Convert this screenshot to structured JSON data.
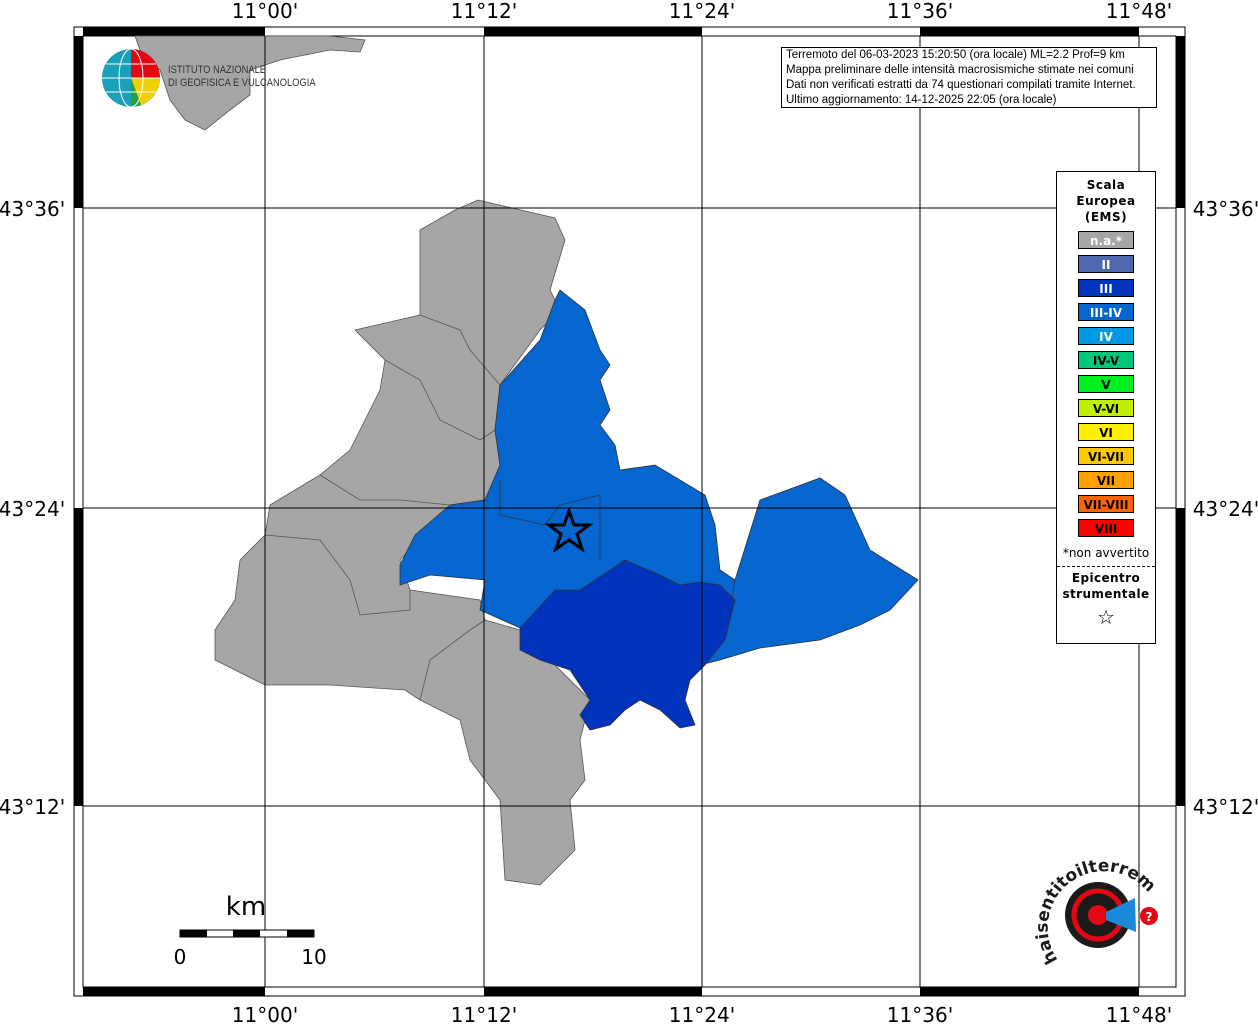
{
  "map": {
    "lon_labels": [
      "11°00'",
      "11°12'",
      "11°24'",
      "11°36'",
      "11°48'"
    ],
    "lat_labels": [
      "43°36'",
      "43°24'",
      "43°12'"
    ],
    "scale": {
      "unit": "km",
      "start": "0",
      "end": "10"
    }
  },
  "info": {
    "line1": "Terremoto del 06-03-2023 15:20:50 (ora locale) ML=2.2 Prof=9 km",
    "line2": "Mappa preliminare delle intensità macrosismiche stimate nei comuni",
    "line3": "Dati non verificati estratti da 74 questionari compilati tramite Internet.",
    "line4": "Ultimo aggiornamento: 14-12-2025 22:05 (ora locale)"
  },
  "legend": {
    "title1": "Scala",
    "title2": "Europea",
    "title3": "(EMS)",
    "items": [
      {
        "label": "n.a.*",
        "color": "#a6a6a6",
        "text": "#ffffff"
      },
      {
        "label": "II",
        "color": "#4f67ae",
        "text": "#ffffff"
      },
      {
        "label": "III",
        "color": "#0033bb",
        "text": "#ffffff"
      },
      {
        "label": "III-IV",
        "color": "#0566d0",
        "text": "#ffffff"
      },
      {
        "label": "IV",
        "color": "#0099e6",
        "text": "#ffffff"
      },
      {
        "label": "IV-V",
        "color": "#00c878",
        "text": "#000000"
      },
      {
        "label": "V",
        "color": "#00f020",
        "text": "#000000"
      },
      {
        "label": "V-VI",
        "color": "#c0f000",
        "text": "#000000"
      },
      {
        "label": "VI",
        "color": "#fff000",
        "text": "#000000"
      },
      {
        "label": "VI-VII",
        "color": "#ffc800",
        "text": "#000000"
      },
      {
        "label": "VII",
        "color": "#ffa000",
        "text": "#000000"
      },
      {
        "label": "VII-VIII",
        "color": "#ff6400",
        "text": "#000000"
      },
      {
        "label": "VIII",
        "color": "#ff0000",
        "text": "#000000"
      }
    ],
    "note": "*non avvertito",
    "epicenter1": "Epicentro",
    "epicenter2": "strumentale",
    "epicenter_icon": "star-outline-icon"
  },
  "logos": {
    "ingv": "ISTITUTO NAZIONALE DI GEOFISICA E VULCANOLOGIA",
    "ingv_line1": "ISTITUTO NAZIONALE",
    "ingv_line2": "DI GEOFISICA E VULCANOLOGIA",
    "hsit": "www.haisentitoilterremoto.it"
  },
  "colors": {
    "na": "#a6a6a6",
    "iii": "#0033bb",
    "iii_iv": "#0566d0"
  }
}
